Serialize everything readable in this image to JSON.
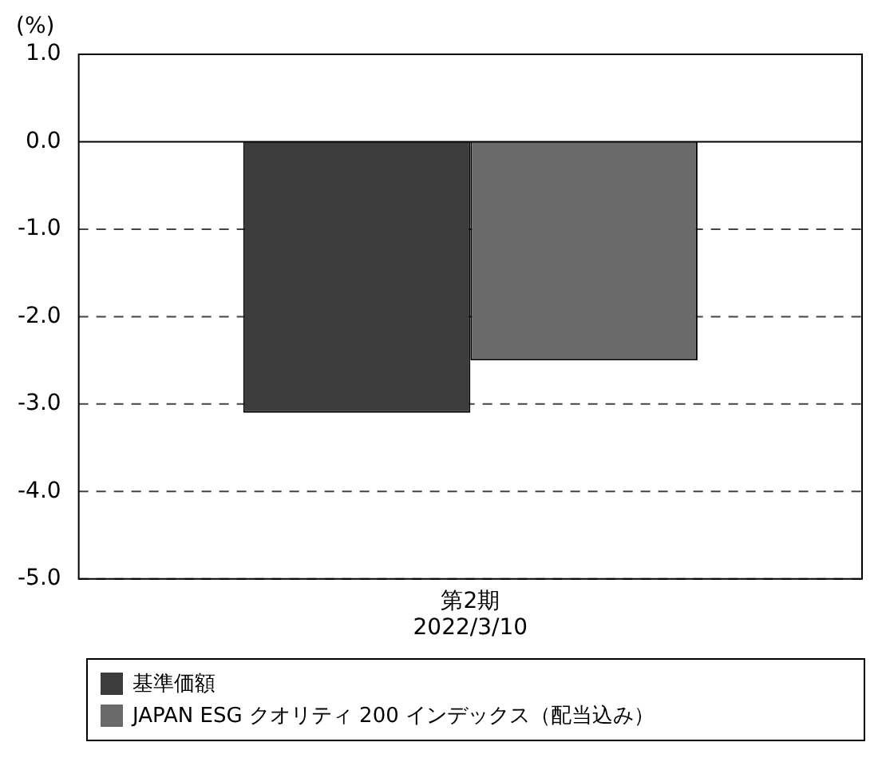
{
  "chart_data": {
    "type": "bar",
    "ylabel": "(%)",
    "categories": [
      "第2期\n2022/3/10"
    ],
    "series": [
      {
        "name": "基準価額",
        "color": "#3c3c3c",
        "values": [
          -3.1
        ]
      },
      {
        "name": "JAPAN ESG クオリティ 200 インデックス（配当込み）",
        "color": "#6a6a6a",
        "values": [
          -2.5
        ]
      }
    ],
    "ylim": [
      -5,
      1
    ],
    "yticks": [
      {
        "value": 1,
        "label": "1.0"
      },
      {
        "value": 0,
        "label": "0.0"
      },
      {
        "value": -1,
        "label": "-1.0"
      },
      {
        "value": -2,
        "label": "-2.0"
      },
      {
        "value": -3,
        "label": "-3.0"
      },
      {
        "value": -4,
        "label": "-4.0"
      },
      {
        "value": -5,
        "label": "-5.0"
      }
    ],
    "grid": "y",
    "legend": "bottom"
  }
}
